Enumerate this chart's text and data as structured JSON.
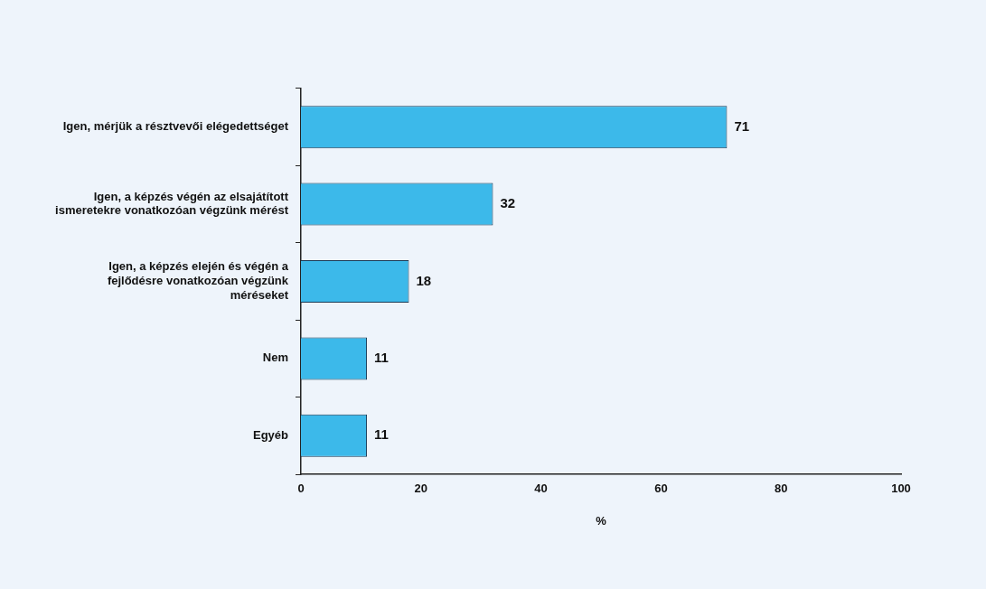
{
  "chart_data": {
    "type": "bar",
    "orientation": "horizontal",
    "categories": [
      "Igen, mérjük a résztvevői elégedettséget",
      "Igen, a képzés végén az elsajátított ismeretekre vonatkozóan végzünk mérést",
      "Igen, a képzés elején és végén a fejlődésre vonatkozóan végzünk méréseket",
      "Nem",
      "Egyéb"
    ],
    "values": [
      71,
      32,
      18,
      11,
      11
    ],
    "color": "#3cb9ea",
    "xlim": [
      0,
      100
    ],
    "xticks": [
      0,
      20,
      40,
      60,
      80,
      100
    ],
    "xlabel": "%",
    "data_labels": true,
    "legend": false
  }
}
